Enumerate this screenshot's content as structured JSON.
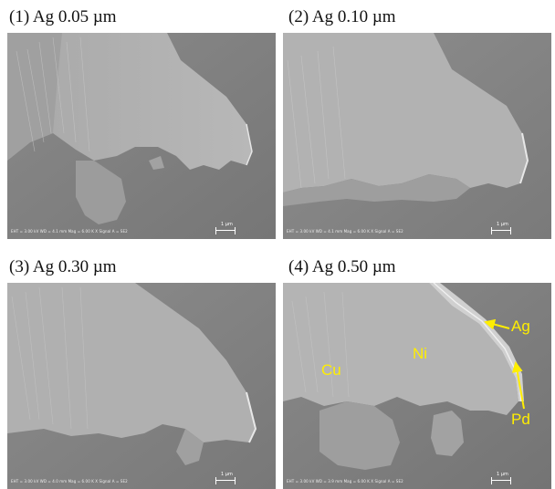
{
  "panels": [
    {
      "caption": "(1) Ag 0.05 µm",
      "scale_label": "1 µm",
      "info": "EHT = 3.00 kV    WD = 4.1 mm    Mag = 6.00 K X    Signal A = SE2"
    },
    {
      "caption": "(2) Ag 0.10 µm",
      "scale_label": "1 µm",
      "info": "EHT = 3.00 kV    WD = 4.1 mm    Mag = 6.00 K X    Signal A = SE2"
    },
    {
      "caption": "(3) Ag 0.30 µm",
      "scale_label": "1 µm",
      "info": "EHT = 3.00 kV    WD = 4.0 mm    Mag = 6.00 K X    Signal A = SE2"
    },
    {
      "caption": "(4) Ag 0.50 µm",
      "scale_label": "1 µm",
      "info": "EHT = 3.00 kV    WD = 3.9 mm    Mag = 6.00 K X    Signal A = SE2"
    }
  ],
  "annotations": {
    "cu": "Cu",
    "ni": "Ni",
    "ag": "Ag",
    "pd": "Pd"
  },
  "colors": {
    "annotation": "#ffee00",
    "background_substrate": "#7a7a7a",
    "nickel_region": "#b4b4b4"
  }
}
